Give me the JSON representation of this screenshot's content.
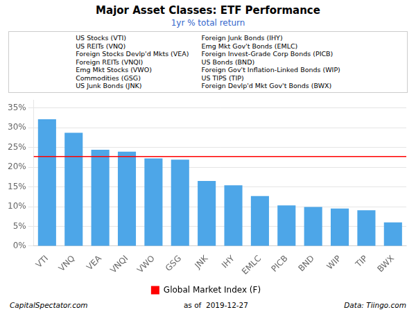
{
  "chart_data": {
    "type": "bar",
    "title": "Major Asset Classes: ETF Performance",
    "subtitle": "1yr % total return",
    "categories": [
      "VTI",
      "VNQ",
      "VEA",
      "VNQI",
      "VWO",
      "GSG",
      "JNK",
      "IHY",
      "EMLC",
      "PICB",
      "BND",
      "WIP",
      "TIP",
      "BWX"
    ],
    "values": [
      32.1,
      28.7,
      24.4,
      23.9,
      22.2,
      21.9,
      16.5,
      15.4,
      12.7,
      10.3,
      9.9,
      9.5,
      9.1,
      6.0
    ],
    "color": "#4da6e8",
    "ylim": [
      0,
      37
    ],
    "yticks": [
      {
        "value": 0,
        "label": "0%"
      },
      {
        "value": 5,
        "label": "5%"
      },
      {
        "value": 10,
        "label": "10%"
      },
      {
        "value": 15,
        "label": "15%"
      },
      {
        "value": 20,
        "label": "20%"
      },
      {
        "value": 25,
        "label": "25%"
      },
      {
        "value": 30,
        "label": "30%"
      },
      {
        "value": 35,
        "label": "35%"
      }
    ],
    "grid": true,
    "reference_line": {
      "value": 22.7,
      "label": "Global Market Index (F)",
      "color": "#ff0000"
    },
    "annotations": [
      [
        "US Stocks (VTI)",
        "US REITs (VNQ)",
        "Foreign Stocks Devlp'd Mkts (VEA)",
        "Foreign REITs (VNQI)",
        "Emg Mkt Stocks (VWO)",
        "Commodities (GSG)",
        "US Junk Bonds (JNK)"
      ],
      [
        "Foreign Junk Bonds (IHY)",
        "Emg Mkt Gov't Bonds (EMLC)",
        "Foreign Invest-Grade Corp Bonds (PICB)",
        "US Bonds (BND)",
        "Foreign Gov't Inflation-Linked Bonds (WIP)",
        "US TIPS (TIP)",
        "Foreign Devlp'd Mkt Gov't Bonds (BWX)"
      ]
    ],
    "footer": [
      "CapitalSpectator.com",
      "as of  2019-12-27",
      "Data: Tiingo.com"
    ]
  }
}
